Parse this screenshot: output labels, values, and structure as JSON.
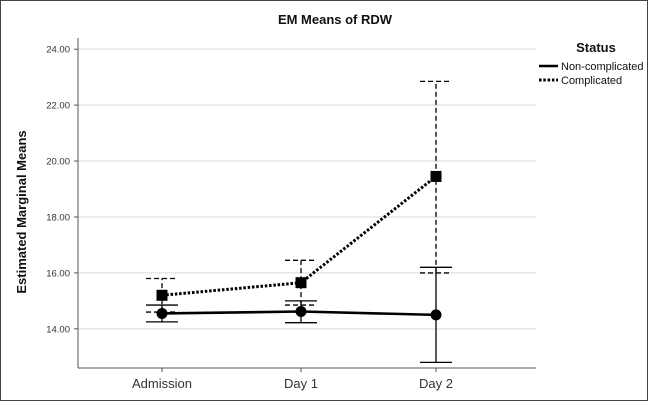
{
  "chart_data": {
    "type": "line",
    "title": "EM Means of RDW",
    "xlabel": "",
    "ylabel": "Estimated Marginal Means",
    "categories": [
      "Admission",
      "Day 1",
      "Day 2"
    ],
    "yticks": [
      "14.00",
      "16.00",
      "18.00",
      "20.00",
      "22.00",
      "24.00"
    ],
    "ylim": [
      12.6,
      24.4
    ],
    "grid": "horizontal",
    "legend": {
      "title": "Status",
      "position": "right"
    },
    "series": [
      {
        "name": "Non-complicated",
        "style": "solid",
        "marker": "circle",
        "values": [
          14.55,
          14.62,
          14.5
        ],
        "ci_low": [
          14.25,
          14.22,
          12.8
        ],
        "ci_high": [
          14.85,
          15.0,
          16.2
        ]
      },
      {
        "name": "Complicated",
        "style": "dotted",
        "marker": "square",
        "values": [
          15.2,
          15.65,
          19.45
        ],
        "ci_low": [
          14.6,
          14.85,
          16.0
        ],
        "ci_high": [
          15.8,
          16.45,
          22.85
        ]
      }
    ],
    "colors": {
      "line": "#000000",
      "grid": "#d9d9d9",
      "axis": "#555555"
    }
  }
}
